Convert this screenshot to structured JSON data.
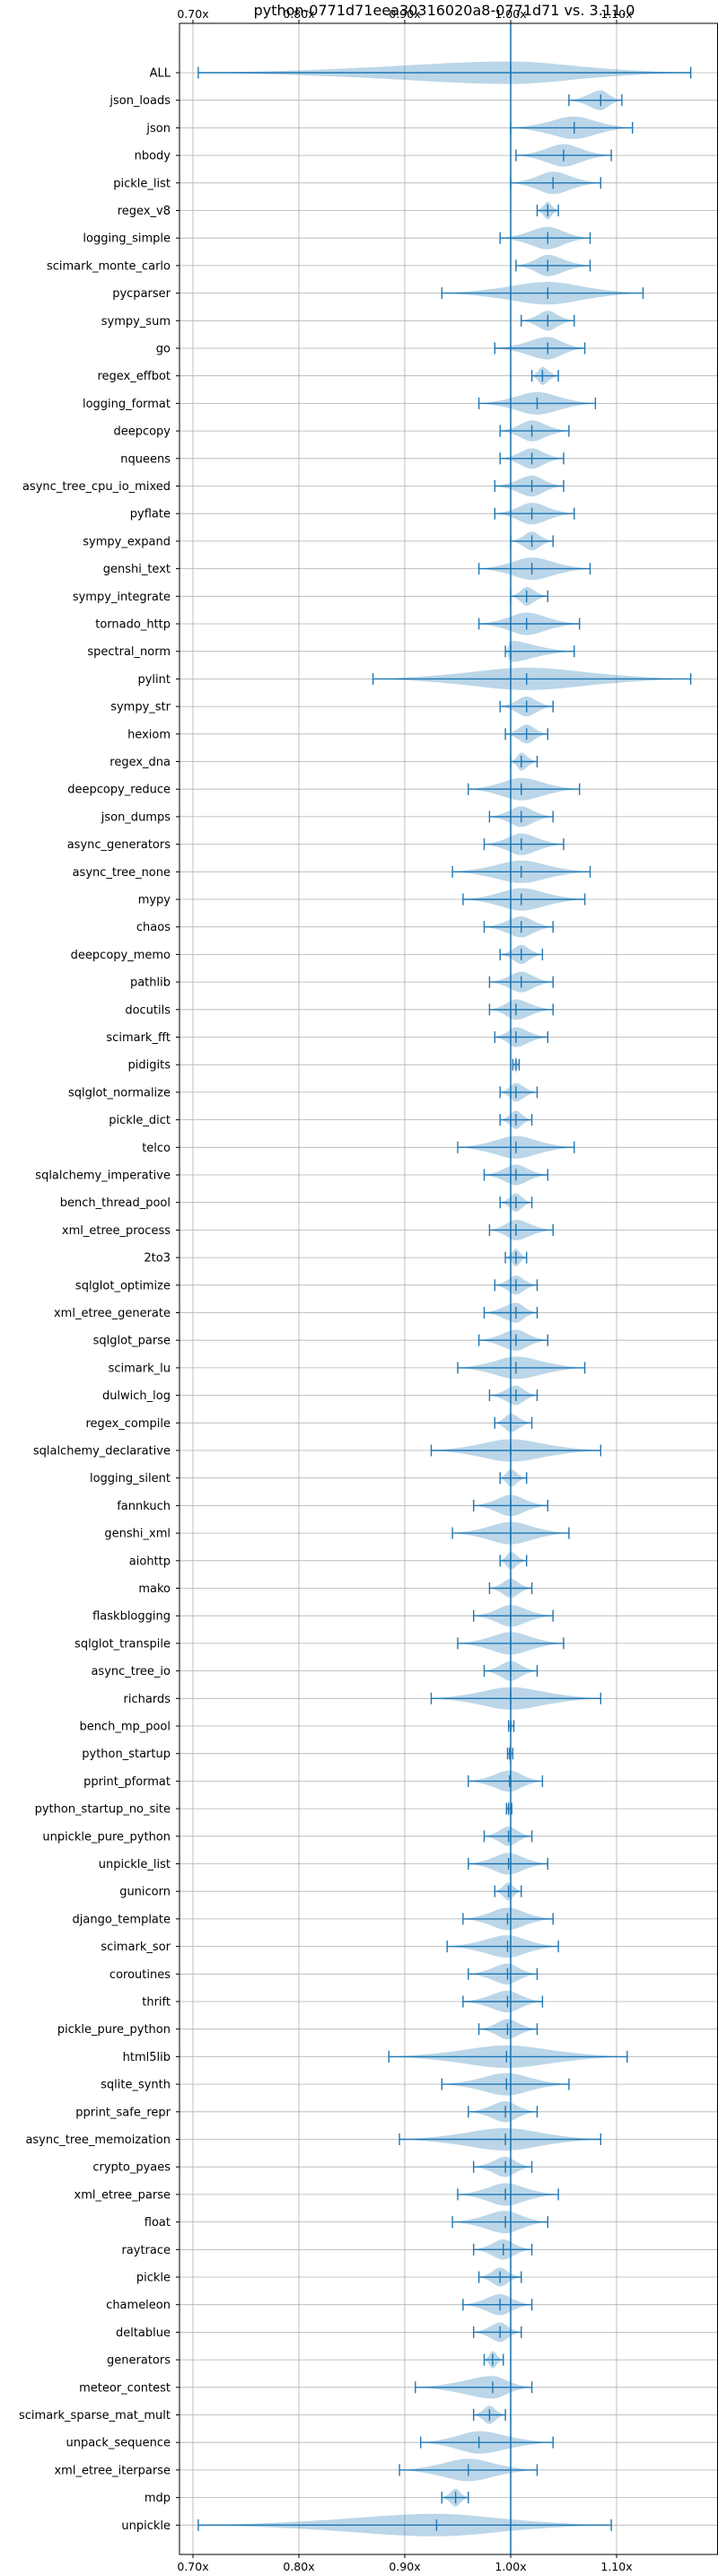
{
  "chart_data": {
    "type": "violin",
    "title": "python-0771d71eea30316020a8-0771d71 vs. 3.11.0",
    "xlabel": "",
    "ylabel": "",
    "xlim": [
      0.7,
      1.135
    ],
    "xticks": [
      0.7,
      0.8,
      0.9,
      1.0,
      1.1
    ],
    "xtick_labels": [
      "0.70x",
      "0.80x",
      "0.90x",
      "1.00x",
      "1.10x"
    ],
    "reference_line": 1.0,
    "grid": true,
    "colors": {
      "violin": "#1f77b4",
      "line": "#1f77b4",
      "grid": "#b0b0b0"
    },
    "categories": [
      "ALL",
      "json_loads",
      "json",
      "nbody",
      "pickle_list",
      "regex_v8",
      "logging_simple",
      "scimark_monte_carlo",
      "pycparser",
      "sympy_sum",
      "go",
      "regex_effbot",
      "logging_format",
      "deepcopy",
      "nqueens",
      "async_tree_cpu_io_mixed",
      "pyflate",
      "sympy_expand",
      "genshi_text",
      "sympy_integrate",
      "tornado_http",
      "spectral_norm",
      "pylint",
      "sympy_str",
      "hexiom",
      "regex_dna",
      "deepcopy_reduce",
      "json_dumps",
      "async_generators",
      "async_tree_none",
      "mypy",
      "chaos",
      "deepcopy_memo",
      "pathlib",
      "docutils",
      "scimark_fft",
      "pidigits",
      "sqlglot_normalize",
      "pickle_dict",
      "telco",
      "sqlalchemy_imperative",
      "bench_thread_pool",
      "xml_etree_process",
      "2to3",
      "sqlglot_optimize",
      "xml_etree_generate",
      "sqlglot_parse",
      "scimark_lu",
      "dulwich_log",
      "regex_compile",
      "sqlalchemy_declarative",
      "logging_silent",
      "fannkuch",
      "genshi_xml",
      "aiohttp",
      "mako",
      "flaskblogging",
      "sqlglot_transpile",
      "async_tree_io",
      "richards",
      "bench_mp_pool",
      "python_startup",
      "pprint_pformat",
      "python_startup_no_site",
      "unpickle_pure_python",
      "unpickle_list",
      "gunicorn",
      "django_template",
      "scimark_sor",
      "coroutines",
      "thrift",
      "pickle_pure_python",
      "html5lib",
      "sqlite_synth",
      "pprint_safe_repr",
      "async_tree_memoization",
      "crypto_pyaes",
      "xml_etree_parse",
      "float",
      "raytrace",
      "pickle",
      "chameleon",
      "deltablue",
      "generators",
      "meteor_contest",
      "scimark_sparse_mat_mult",
      "unpack_sequence",
      "xml_etree_iterparse",
      "mdp",
      "unpickle"
    ],
    "series": [
      {
        "min": 0.705,
        "median": 1.0,
        "max": 1.17
      },
      {
        "min": 1.055,
        "median": 1.085,
        "max": 1.105
      },
      {
        "min": 1.0,
        "median": 1.06,
        "max": 1.115
      },
      {
        "min": 1.005,
        "median": 1.05,
        "max": 1.095
      },
      {
        "min": 1.0,
        "median": 1.04,
        "max": 1.085
      },
      {
        "min": 1.025,
        "median": 1.035,
        "max": 1.045
      },
      {
        "min": 0.99,
        "median": 1.035,
        "max": 1.075
      },
      {
        "min": 1.005,
        "median": 1.035,
        "max": 1.075
      },
      {
        "min": 0.935,
        "median": 1.035,
        "max": 1.125
      },
      {
        "min": 1.01,
        "median": 1.035,
        "max": 1.06
      },
      {
        "min": 0.985,
        "median": 1.035,
        "max": 1.07
      },
      {
        "min": 1.02,
        "median": 1.03,
        "max": 1.045
      },
      {
        "min": 0.97,
        "median": 1.025,
        "max": 1.08
      },
      {
        "min": 0.99,
        "median": 1.02,
        "max": 1.055
      },
      {
        "min": 0.99,
        "median": 1.02,
        "max": 1.05
      },
      {
        "min": 0.985,
        "median": 1.02,
        "max": 1.05
      },
      {
        "min": 0.985,
        "median": 1.02,
        "max": 1.06
      },
      {
        "min": 1.0,
        "median": 1.02,
        "max": 1.04
      },
      {
        "min": 0.97,
        "median": 1.02,
        "max": 1.075
      },
      {
        "min": 1.0,
        "median": 1.015,
        "max": 1.035
      },
      {
        "min": 0.97,
        "median": 1.015,
        "max": 1.065
      },
      {
        "min": 0.995,
        "median": 1.0,
        "max": 1.06
      },
      {
        "min": 0.87,
        "median": 1.015,
        "max": 1.17
      },
      {
        "min": 0.99,
        "median": 1.015,
        "max": 1.04
      },
      {
        "min": 0.995,
        "median": 1.015,
        "max": 1.035
      },
      {
        "min": 1.0,
        "median": 1.01,
        "max": 1.025
      },
      {
        "min": 0.96,
        "median": 1.01,
        "max": 1.065
      },
      {
        "min": 0.98,
        "median": 1.01,
        "max": 1.04
      },
      {
        "min": 0.975,
        "median": 1.01,
        "max": 1.05
      },
      {
        "min": 0.945,
        "median": 1.01,
        "max": 1.075
      },
      {
        "min": 0.955,
        "median": 1.01,
        "max": 1.07
      },
      {
        "min": 0.975,
        "median": 1.01,
        "max": 1.04
      },
      {
        "min": 0.99,
        "median": 1.01,
        "max": 1.03
      },
      {
        "min": 0.98,
        "median": 1.01,
        "max": 1.04
      },
      {
        "min": 0.98,
        "median": 1.005,
        "max": 1.04
      },
      {
        "min": 0.985,
        "median": 1.005,
        "max": 1.035
      },
      {
        "min": 1.002,
        "median": 1.005,
        "max": 1.008
      },
      {
        "min": 0.99,
        "median": 1.005,
        "max": 1.025
      },
      {
        "min": 0.99,
        "median": 1.005,
        "max": 1.02
      },
      {
        "min": 0.95,
        "median": 1.005,
        "max": 1.06
      },
      {
        "min": 0.975,
        "median": 1.005,
        "max": 1.035
      },
      {
        "min": 0.99,
        "median": 1.005,
        "max": 1.02
      },
      {
        "min": 0.98,
        "median": 1.005,
        "max": 1.04
      },
      {
        "min": 0.995,
        "median": 1.005,
        "max": 1.015
      },
      {
        "min": 0.985,
        "median": 1.005,
        "max": 1.025
      },
      {
        "min": 0.975,
        "median": 1.005,
        "max": 1.025
      },
      {
        "min": 0.97,
        "median": 1.005,
        "max": 1.035
      },
      {
        "min": 0.95,
        "median": 1.005,
        "max": 1.07
      },
      {
        "min": 0.98,
        "median": 1.005,
        "max": 1.025
      },
      {
        "min": 0.985,
        "median": 1.0,
        "max": 1.02
      },
      {
        "min": 0.925,
        "median": 1.0,
        "max": 1.085
      },
      {
        "min": 0.99,
        "median": 1.0,
        "max": 1.015
      },
      {
        "min": 0.965,
        "median": 1.0,
        "max": 1.035
      },
      {
        "min": 0.945,
        "median": 1.0,
        "max": 1.055
      },
      {
        "min": 0.99,
        "median": 1.0,
        "max": 1.015
      },
      {
        "min": 0.98,
        "median": 1.0,
        "max": 1.02
      },
      {
        "min": 0.965,
        "median": 1.0,
        "max": 1.04
      },
      {
        "min": 0.95,
        "median": 1.0,
        "max": 1.05
      },
      {
        "min": 0.975,
        "median": 1.0,
        "max": 1.025
      },
      {
        "min": 0.925,
        "median": 1.0,
        "max": 1.085
      },
      {
        "min": 0.998,
        "median": 1.0,
        "max": 1.003
      },
      {
        "min": 0.997,
        "median": 0.999,
        "max": 1.002
      },
      {
        "min": 0.96,
        "median": 0.999,
        "max": 1.03
      },
      {
        "min": 0.996,
        "median": 0.998,
        "max": 1.001
      },
      {
        "min": 0.975,
        "median": 0.998,
        "max": 1.02
      },
      {
        "min": 0.96,
        "median": 0.998,
        "max": 1.035
      },
      {
        "min": 0.985,
        "median": 0.998,
        "max": 1.01
      },
      {
        "min": 0.955,
        "median": 0.997,
        "max": 1.04
      },
      {
        "min": 0.94,
        "median": 0.997,
        "max": 1.045
      },
      {
        "min": 0.96,
        "median": 0.997,
        "max": 1.025
      },
      {
        "min": 0.955,
        "median": 0.997,
        "max": 1.03
      },
      {
        "min": 0.97,
        "median": 0.997,
        "max": 1.025
      },
      {
        "min": 0.885,
        "median": 0.996,
        "max": 1.11
      },
      {
        "min": 0.935,
        "median": 0.996,
        "max": 1.055
      },
      {
        "min": 0.96,
        "median": 0.995,
        "max": 1.025
      },
      {
        "min": 0.895,
        "median": 0.995,
        "max": 1.085
      },
      {
        "min": 0.965,
        "median": 0.995,
        "max": 1.02
      },
      {
        "min": 0.95,
        "median": 0.995,
        "max": 1.045
      },
      {
        "min": 0.945,
        "median": 0.995,
        "max": 1.035
      },
      {
        "min": 0.965,
        "median": 0.993,
        "max": 1.02
      },
      {
        "min": 0.97,
        "median": 0.99,
        "max": 1.01
      },
      {
        "min": 0.955,
        "median": 0.99,
        "max": 1.02
      },
      {
        "min": 0.965,
        "median": 0.99,
        "max": 1.01
      },
      {
        "min": 0.975,
        "median": 0.983,
        "max": 0.993
      },
      {
        "min": 0.91,
        "median": 0.983,
        "max": 1.02
      },
      {
        "min": 0.965,
        "median": 0.98,
        "max": 0.995
      },
      {
        "min": 0.915,
        "median": 0.97,
        "max": 1.04
      },
      {
        "min": 0.895,
        "median": 0.96,
        "max": 1.025
      },
      {
        "min": 0.935,
        "median": 0.948,
        "max": 0.96
      },
      {
        "min": 0.705,
        "median": 0.93,
        "max": 1.095
      }
    ]
  }
}
